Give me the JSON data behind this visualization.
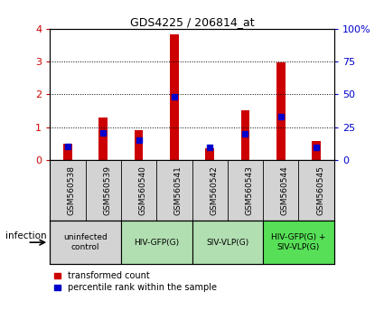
{
  "title": "GDS4225 / 206814_at",
  "samples": [
    "GSM560538",
    "GSM560539",
    "GSM560540",
    "GSM560541",
    "GSM560542",
    "GSM560543",
    "GSM560544",
    "GSM560545"
  ],
  "transformed_count": [
    0.5,
    1.3,
    0.9,
    3.83,
    0.35,
    1.52,
    2.97,
    0.58
  ],
  "percentile_rank_left": [
    0.42,
    0.82,
    0.62,
    1.93,
    0.38,
    0.8,
    1.33,
    0.38
  ],
  "ylim_left": [
    0,
    4
  ],
  "ylim_right": [
    0,
    100
  ],
  "yticks_left": [
    0,
    1,
    2,
    3,
    4
  ],
  "yticks_right": [
    0,
    25,
    50,
    75,
    100
  ],
  "bar_color": "#cc0000",
  "percentile_color": "#0000cc",
  "bar_width": 0.25,
  "blue_marker_size": 5,
  "group_colors": [
    "#d3d3d3",
    "#b2dfb2",
    "#b2dfb2",
    "#57e057"
  ],
  "group_labels": [
    "uninfected\ncontrol",
    "HIV-GFP(G)",
    "SIV-VLP(G)",
    "HIV-GFP(G) +\nSIV-VLP(G)"
  ],
  "group_ranges": [
    [
      0,
      1
    ],
    [
      2,
      3
    ],
    [
      4,
      5
    ],
    [
      6,
      7
    ]
  ],
  "legend_labels": [
    "transformed count",
    "percentile rank within the sample"
  ],
  "xlabel_infection": "infection",
  "tick_color_left": "#cc0000",
  "tick_color_right": "#0000cc",
  "sample_bg": "#d3d3d3"
}
